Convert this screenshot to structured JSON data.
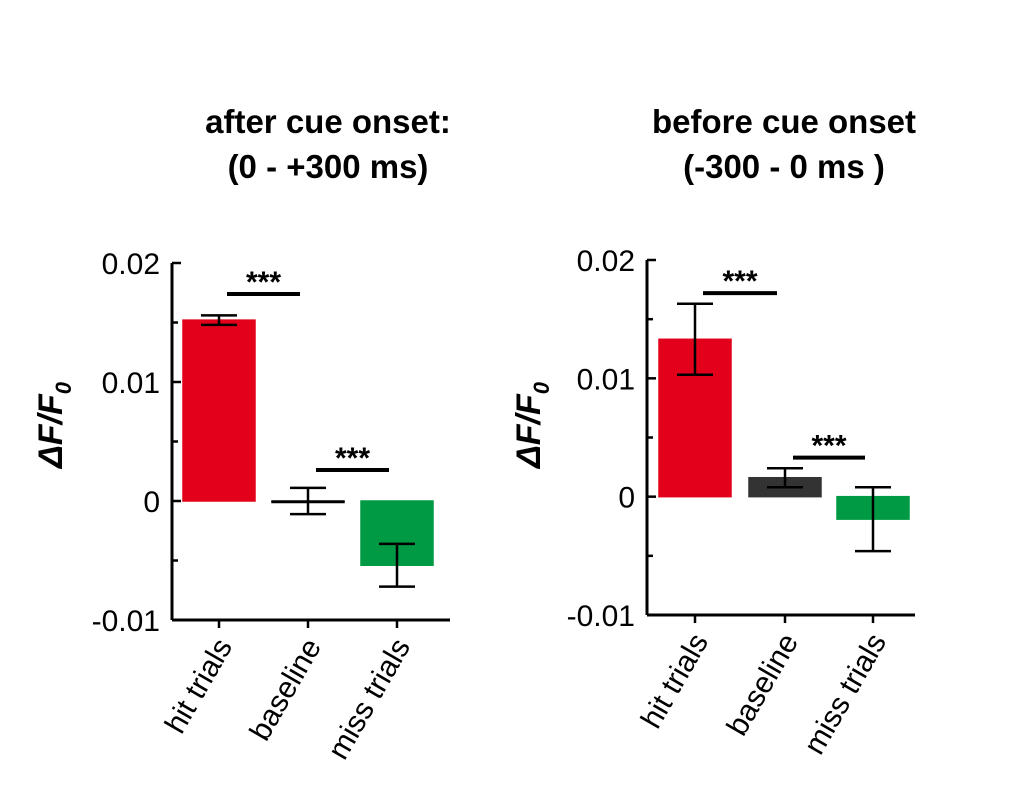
{
  "chart_data": [
    {
      "type": "bar",
      "title": [
        "after cue onset:",
        "(0 - +300 ms)"
      ],
      "ylabel": "ΔF/F",
      "ylabel_subscript": "0",
      "categories": [
        "hit trials",
        "baseline",
        "miss trials"
      ],
      "values": [
        0.0152,
        0.0,
        -0.0054
      ],
      "error": [
        0.0004,
        0.0011,
        0.0018
      ],
      "colors": [
        "#e2001a",
        "#ffffff",
        "#009a44"
      ],
      "edge_colors": [
        "#e2001a",
        "#000000",
        "#009a44"
      ],
      "ylim": [
        -0.01,
        0.02
      ],
      "yticks": [
        -0.01,
        0,
        0.01,
        0.02
      ],
      "ytick_labels": [
        "-0.01",
        "0",
        "0.01",
        "0.02"
      ],
      "significance": [
        {
          "from": 0,
          "to": 1,
          "label": "***",
          "y": 0.0174
        },
        {
          "from": 1,
          "to": 2,
          "label": "***",
          "y": 0.0026
        }
      ]
    },
    {
      "type": "bar",
      "title": [
        "before cue onset",
        "(-300 - 0 ms )"
      ],
      "ylabel": "ΔF/F",
      "ylabel_subscript": "0",
      "categories": [
        "hit trials",
        "baseline",
        "miss trials"
      ],
      "values": [
        0.0133,
        0.0016,
        -0.0019
      ],
      "error": [
        0.003,
        0.0008,
        0.0027
      ],
      "colors": [
        "#e2001a",
        "#333333",
        "#009a44"
      ],
      "edge_colors": [
        "#e2001a",
        "#333333",
        "#009a44"
      ],
      "ylim": [
        -0.01,
        0.02
      ],
      "yticks": [
        -0.01,
        0,
        0.01,
        0.02
      ],
      "ytick_labels": [
        "-0.01",
        "0",
        "0.01",
        "0.02"
      ],
      "significance": [
        {
          "from": 0,
          "to": 1,
          "label": "***",
          "y": 0.0172
        },
        {
          "from": 1,
          "to": 2,
          "label": "***",
          "y": 0.0033
        }
      ]
    }
  ]
}
